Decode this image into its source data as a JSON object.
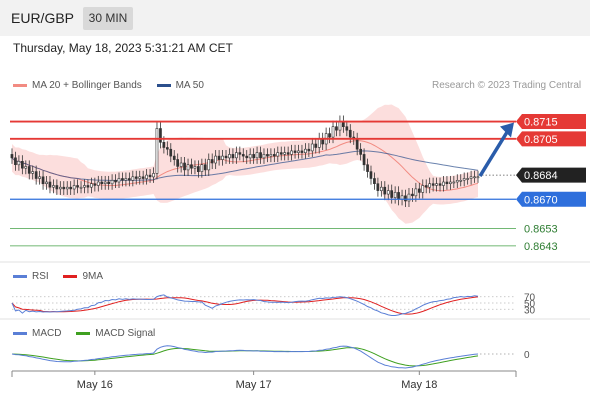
{
  "header": {
    "symbol": "EUR/GBP",
    "timeframe": "30 MIN",
    "timestamp": "Thursday, May 18, 2023 5:31:21 AM CET",
    "copyright": "Research © 2023 Trading Central"
  },
  "legends": {
    "price": [
      {
        "label": "MA 20 + Bollinger Bands",
        "color": "#f28b82"
      },
      {
        "label": "MA 50",
        "color": "#2b4f8c"
      }
    ],
    "rsi": [
      {
        "label": "RSI",
        "color": "#5a7fd6"
      },
      {
        "label": "9MA",
        "color": "#e02020"
      }
    ],
    "macd": [
      {
        "label": "MACD",
        "color": "#5a7fd6"
      },
      {
        "label": "MACD Signal",
        "color": "#3fa020"
      }
    ]
  },
  "chart_data": [
    {
      "type": "candlestick",
      "panel": "price",
      "ylim": [
        0.8636,
        0.8724
      ],
      "current_price": 0.8684,
      "levels": [
        {
          "value": 0.8715,
          "label": "0.8715",
          "kind": "resistance",
          "color": "#e53935"
        },
        {
          "value": 0.8705,
          "label": "0.8705",
          "kind": "resistance",
          "color": "#e53935"
        },
        {
          "value": 0.8684,
          "label": "0.8684",
          "kind": "current",
          "color": "#222222"
        },
        {
          "value": 0.867,
          "label": "0.8670",
          "kind": "pivot",
          "color": "#2e6fdc"
        },
        {
          "value": 0.8653,
          "label": "0.8653",
          "kind": "support",
          "color": "#43a047"
        },
        {
          "value": 0.8643,
          "label": "0.8643",
          "kind": "support",
          "color": "#43a047"
        }
      ],
      "close": [
        0.8694,
        0.869,
        0.8692,
        0.8688,
        0.8689,
        0.8685,
        0.8686,
        0.8682,
        0.8683,
        0.8679,
        0.868,
        0.8677,
        0.8678,
        0.8676,
        0.8677,
        0.8676,
        0.8677,
        0.8676,
        0.8678,
        0.8677,
        0.8677,
        0.8678,
        0.8677,
        0.8679,
        0.8678,
        0.868,
        0.8679,
        0.868,
        0.8679,
        0.8681,
        0.868,
        0.8682,
        0.8681,
        0.8682,
        0.8681,
        0.8683,
        0.8682,
        0.8683,
        0.8682,
        0.8684,
        0.8683,
        0.8685,
        0.8711,
        0.8703,
        0.87,
        0.8699,
        0.8695,
        0.8693,
        0.8689,
        0.8691,
        0.8687,
        0.869,
        0.8688,
        0.8689,
        0.8686,
        0.869,
        0.8687,
        0.8693,
        0.8691,
        0.8695,
        0.8693,
        0.8695,
        0.8694,
        0.8696,
        0.8694,
        0.8697,
        0.8696,
        0.8695,
        0.8694,
        0.8696,
        0.8694,
        0.8697,
        0.8694,
        0.8696,
        0.8695,
        0.8696,
        0.8695,
        0.8697,
        0.8696,
        0.8697,
        0.8696,
        0.8698,
        0.8697,
        0.8698,
        0.8697,
        0.8699,
        0.8698,
        0.8702,
        0.87,
        0.8705,
        0.8702,
        0.8708,
        0.8706,
        0.8712,
        0.871,
        0.8715,
        0.8712,
        0.871,
        0.8706,
        0.8705,
        0.8699,
        0.8696,
        0.869,
        0.8686,
        0.8682,
        0.8679,
        0.8675,
        0.8677,
        0.8673,
        0.8675,
        0.8671,
        0.8674,
        0.867,
        0.8672,
        0.8669,
        0.8673,
        0.8672,
        0.8676,
        0.8674,
        0.8678,
        0.8677,
        0.8679,
        0.8678,
        0.8679,
        0.8678,
        0.868,
        0.8679,
        0.868,
        0.868,
        0.8681,
        0.8681,
        0.8682,
        0.8682,
        0.8683,
        0.8683,
        0.8683
      ],
      "ma_note": "MA 20 with Bollinger Bands and MA 50 are drawn from these closes"
    },
    {
      "type": "line",
      "panel": "rsi",
      "levels": [
        {
          "value": 70,
          "label": "70"
        },
        {
          "value": 50,
          "label": "50"
        },
        {
          "value": 30,
          "label": "30"
        }
      ],
      "ylim": [
        15,
        85
      ]
    },
    {
      "type": "line",
      "panel": "macd",
      "levels": [
        {
          "value": 0,
          "label": "0"
        }
      ],
      "series": [
        "MACD",
        "MACD Signal"
      ]
    }
  ],
  "xaxis": {
    "ticks": [
      {
        "label": "May 16",
        "index": 24
      },
      {
        "label": "May 17",
        "index": 70
      },
      {
        "label": "May 18",
        "index": 118
      }
    ]
  }
}
